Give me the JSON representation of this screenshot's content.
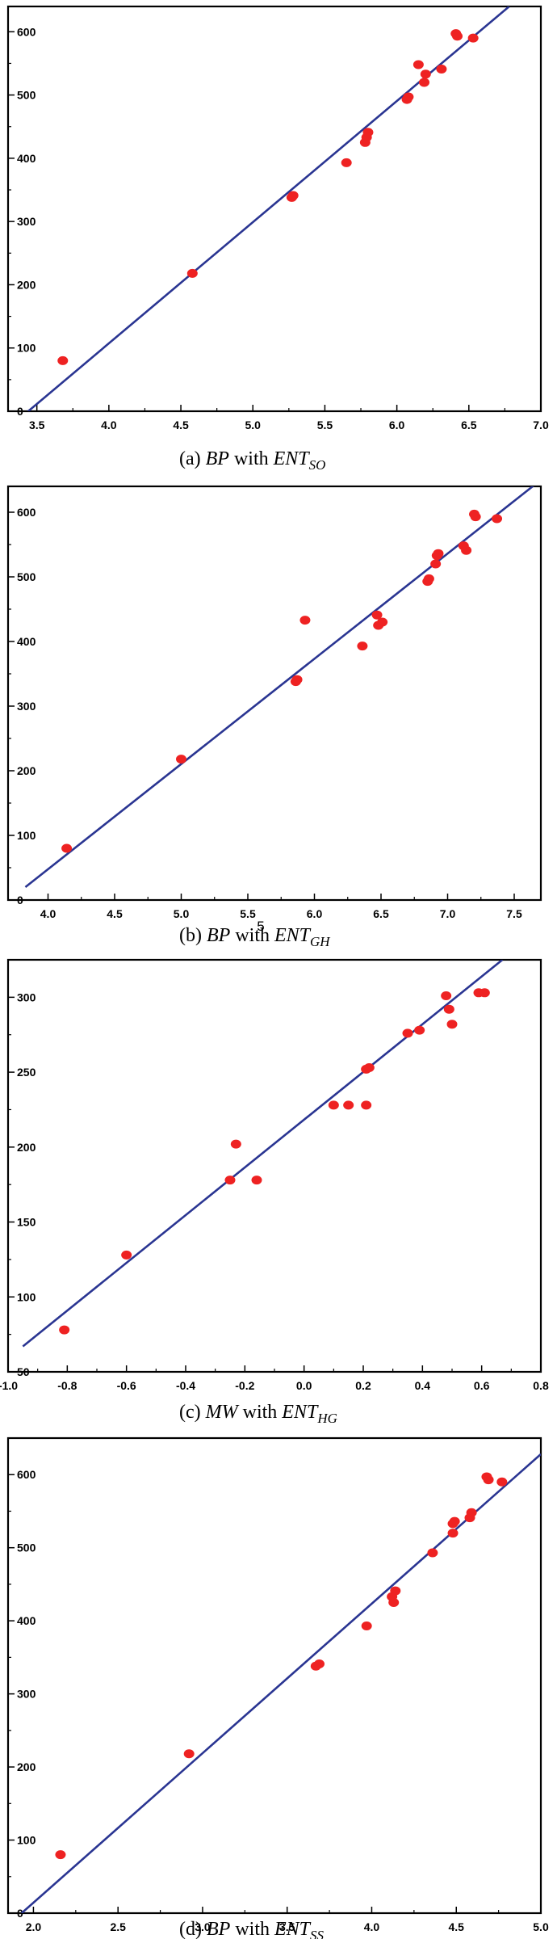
{
  "colors": {
    "points": "#ee2222",
    "fit_line": "#2a3592",
    "axes": "#000000"
  },
  "chart_data": [
    {
      "type": "scatter",
      "caption": {
        "letter": "(a) ",
        "yvar": "BP",
        "with": " with ",
        "xvar": "ENT",
        "sub": "SO"
      },
      "xlim": [
        3.3,
        7.0
      ],
      "ylim": [
        0,
        640
      ],
      "xticks": [
        3.5,
        4.0,
        4.5,
        5.0,
        5.5,
        6.0,
        6.5,
        7.0
      ],
      "xtick_labels": [
        "3.5",
        "4.0",
        "4.5",
        "5.0",
        "5.5",
        "6.0",
        "6.5",
        "7.0"
      ],
      "yticks": [
        0,
        100,
        200,
        300,
        400,
        500,
        600
      ],
      "ytick_labels": [
        "0",
        "100",
        "200",
        "300",
        "400",
        "500",
        "600"
      ],
      "fit_line": [
        [
          3.44,
          0
        ],
        [
          6.78,
          640
        ]
      ],
      "points": [
        [
          3.68,
          80
        ],
        [
          4.58,
          218
        ],
        [
          5.27,
          338
        ],
        [
          5.28,
          341
        ],
        [
          5.65,
          393
        ],
        [
          5.78,
          425
        ],
        [
          5.79,
          433
        ],
        [
          5.8,
          441
        ],
        [
          6.07,
          493
        ],
        [
          6.08,
          497
        ],
        [
          6.15,
          548
        ],
        [
          6.19,
          520
        ],
        [
          6.2,
          533
        ],
        [
          6.31,
          541
        ],
        [
          6.41,
          597
        ],
        [
          6.42,
          593
        ],
        [
          6.53,
          590
        ]
      ]
    },
    {
      "type": "scatter",
      "caption": {
        "letter": "(b) ",
        "yvar": "BP",
        "with": " with ",
        "xvar": "ENT",
        "sub": "GH"
      },
      "xlim": [
        3.7,
        7.7
      ],
      "ylim": [
        0,
        640
      ],
      "xticks": [
        4.0,
        4.5,
        5.0,
        5.5,
        6.0,
        6.5,
        7.0,
        7.5
      ],
      "xtick_labels": [
        "4.0",
        "4.5",
        "5.0",
        "5.5",
        "6.0",
        "6.5",
        "7.0",
        "7.5"
      ],
      "yticks": [
        0,
        100,
        200,
        300,
        400,
        500,
        600
      ],
      "ytick_labels": [
        "0",
        "100",
        "200",
        "300",
        "400",
        "500",
        "600"
      ],
      "stray_text": "5",
      "fit_line": [
        [
          3.83,
          20
        ],
        [
          7.7,
          650
        ]
      ],
      "points": [
        [
          4.14,
          80
        ],
        [
          5.0,
          218
        ],
        [
          5.86,
          338
        ],
        [
          5.87,
          341
        ],
        [
          5.93,
          433
        ],
        [
          6.36,
          393
        ],
        [
          6.47,
          441
        ],
        [
          6.48,
          425
        ],
        [
          6.51,
          430
        ],
        [
          6.85,
          493
        ],
        [
          6.86,
          497
        ],
        [
          6.91,
          520
        ],
        [
          6.92,
          533
        ],
        [
          6.93,
          536
        ],
        [
          7.12,
          548
        ],
        [
          7.14,
          541
        ],
        [
          7.2,
          597
        ],
        [
          7.21,
          593
        ],
        [
          7.37,
          590
        ]
      ]
    },
    {
      "type": "scatter",
      "caption": {
        "letter": "(c) ",
        "yvar": "MW",
        "with": " with ",
        "xvar": "ENT",
        "sub": "HG"
      },
      "xlim": [
        -1.0,
        0.8
      ],
      "ylim": [
        50,
        325
      ],
      "xticks": [
        -1.0,
        -0.8,
        -0.6,
        -0.4,
        -0.2,
        0.0,
        0.2,
        0.4,
        0.6,
        0.8
      ],
      "xtick_labels": [
        "-1.0",
        "-0.8",
        "-0.6",
        "-0.4",
        "-0.2",
        "0.0",
        "0.2",
        "0.4",
        "0.6",
        "0.8"
      ],
      "yticks": [
        50,
        100,
        150,
        200,
        250,
        300
      ],
      "ytick_labels": [
        "50",
        "100",
        "150",
        "200",
        "250",
        "300"
      ],
      "fit_line": [
        [
          -0.95,
          67
        ],
        [
          0.67,
          325
        ]
      ],
      "points": [
        [
          -0.81,
          78
        ],
        [
          -0.6,
          128
        ],
        [
          -0.25,
          178
        ],
        [
          -0.23,
          202
        ],
        [
          -0.16,
          178
        ],
        [
          0.1,
          228
        ],
        [
          0.15,
          228
        ],
        [
          0.21,
          252
        ],
        [
          0.21,
          228
        ],
        [
          0.22,
          253
        ],
        [
          0.35,
          276
        ],
        [
          0.39,
          278
        ],
        [
          0.48,
          301
        ],
        [
          0.49,
          292
        ],
        [
          0.5,
          282
        ],
        [
          0.59,
          303
        ],
        [
          0.61,
          303
        ]
      ]
    },
    {
      "type": "scatter",
      "caption": {
        "letter": "(d) ",
        "yvar": "BP",
        "with": " with ",
        "xvar": "ENT",
        "sub": "SS"
      },
      "xlim": [
        1.85,
        5.0
      ],
      "ylim": [
        0,
        650
      ],
      "xticks": [
        2.0,
        2.5,
        3.0,
        3.5,
        4.0,
        4.5,
        5.0
      ],
      "xtick_labels": [
        "2.0",
        "2.5",
        "3.0",
        "3.5",
        "4.0",
        "4.5",
        "5.0"
      ],
      "yticks": [
        0,
        100,
        200,
        300,
        400,
        500,
        600
      ],
      "ytick_labels": [
        "0",
        "100",
        "200",
        "300",
        "400",
        "500",
        "600"
      ],
      "fit_line": [
        [
          1.93,
          0
        ],
        [
          5.0,
          628
        ]
      ],
      "points": [
        [
          2.16,
          80
        ],
        [
          2.92,
          218
        ],
        [
          3.67,
          338
        ],
        [
          3.69,
          341
        ],
        [
          3.97,
          393
        ],
        [
          4.12,
          433
        ],
        [
          4.13,
          425
        ],
        [
          4.14,
          441
        ],
        [
          4.36,
          493
        ],
        [
          4.48,
          520
        ],
        [
          4.48,
          533
        ],
        [
          4.49,
          536
        ],
        [
          4.58,
          541
        ],
        [
          4.59,
          548
        ],
        [
          4.68,
          597
        ],
        [
          4.69,
          593
        ],
        [
          4.77,
          590
        ]
      ]
    }
  ]
}
